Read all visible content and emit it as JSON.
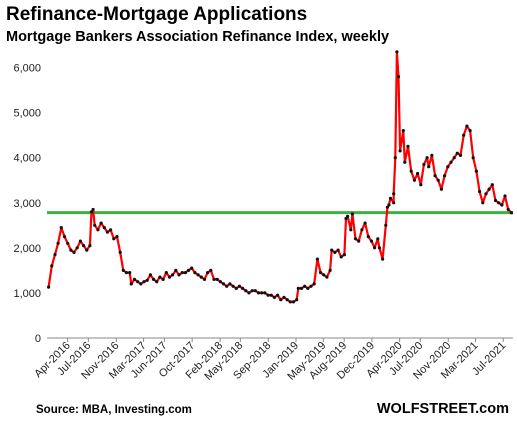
{
  "title": "Refinance-Mortgage  Applications",
  "subtitle": "Mortgage Bankers Association Refinance Index, weekly",
  "source": "Source: MBA,  Investing.com",
  "brand": "WOLFSTREET.com",
  "chart_data": {
    "type": "line",
    "title": "Refinance-Mortgage  Applications",
    "subtitle": "Mortgage Bankers Association Refinance Index, weekly",
    "xlabel": "",
    "ylabel": "",
    "ylim": [
      0,
      6500
    ],
    "y_ticks": [
      0,
      1000,
      2000,
      3000,
      4000,
      5000,
      6000
    ],
    "y_tick_labels": [
      "0",
      "1,000",
      "2,000",
      "3,000",
      "4,000",
      "5,000",
      "6,000"
    ],
    "x_range": [
      "2016-01-01",
      "2021-08-13"
    ],
    "x_ticks": [
      {
        "label": "Apr-2016",
        "date": "2016-04-01"
      },
      {
        "label": "Jul-2016",
        "date": "2016-07-01"
      },
      {
        "label": "Nov-2016",
        "date": "2016-11-01"
      },
      {
        "label": "Mar-2017",
        "date": "2017-03-01"
      },
      {
        "label": "Jun-2017",
        "date": "2017-06-01"
      },
      {
        "label": "Oct-2017",
        "date": "2017-10-01"
      },
      {
        "label": "Feb-2018",
        "date": "2018-02-01"
      },
      {
        "label": "May-2018",
        "date": "2018-05-01"
      },
      {
        "label": "Sep-2018",
        "date": "2018-09-01"
      },
      {
        "label": "Jan-2019",
        "date": "2019-01-01"
      },
      {
        "label": "May-2019",
        "date": "2019-05-01"
      },
      {
        "label": "Aug-2019",
        "date": "2019-08-01"
      },
      {
        "label": "Dec-2019",
        "date": "2019-12-01"
      },
      {
        "label": "Apr-2020",
        "date": "2020-04-01"
      },
      {
        "label": "Jul-2020",
        "date": "2020-07-01"
      },
      {
        "label": "Nov-2020",
        "date": "2020-11-01"
      },
      {
        "label": "Mar-2021",
        "date": "2021-03-01"
      },
      {
        "label": "Jul-2021",
        "date": "2021-07-01"
      }
    ],
    "reference_line": {
      "y": 2780,
      "color": "#3cb043"
    },
    "series": [
      {
        "color": "#ff0000",
        "marker_color": "#111111",
        "points": [
          [
            "2016-01-08",
            1130
          ],
          [
            "2016-01-22",
            1600
          ],
          [
            "2016-02-05",
            1850
          ],
          [
            "2016-02-19",
            2100
          ],
          [
            "2016-03-04",
            2450
          ],
          [
            "2016-03-18",
            2250
          ],
          [
            "2016-04-01",
            2100
          ],
          [
            "2016-04-15",
            1950
          ],
          [
            "2016-04-29",
            1900
          ],
          [
            "2016-05-13",
            2000
          ],
          [
            "2016-05-27",
            2150
          ],
          [
            "2016-06-10",
            2050
          ],
          [
            "2016-06-24",
            1950
          ],
          [
            "2016-07-08",
            2050
          ],
          [
            "2016-07-15",
            2800
          ],
          [
            "2016-07-22",
            2850
          ],
          [
            "2016-07-29",
            2500
          ],
          [
            "2016-08-12",
            2400
          ],
          [
            "2016-08-26",
            2550
          ],
          [
            "2016-09-09",
            2450
          ],
          [
            "2016-09-23",
            2350
          ],
          [
            "2016-10-07",
            2400
          ],
          [
            "2016-10-21",
            2200
          ],
          [
            "2016-11-04",
            2250
          ],
          [
            "2016-11-18",
            1900
          ],
          [
            "2016-12-02",
            1500
          ],
          [
            "2016-12-16",
            1450
          ],
          [
            "2016-12-30",
            1450
          ],
          [
            "2017-01-06",
            1200
          ],
          [
            "2017-01-20",
            1300
          ],
          [
            "2017-02-03",
            1250
          ],
          [
            "2017-02-17",
            1200
          ],
          [
            "2017-03-03",
            1250
          ],
          [
            "2017-03-17",
            1280
          ],
          [
            "2017-03-31",
            1400
          ],
          [
            "2017-04-14",
            1300
          ],
          [
            "2017-04-28",
            1250
          ],
          [
            "2017-05-12",
            1350
          ],
          [
            "2017-05-26",
            1300
          ],
          [
            "2017-06-09",
            1450
          ],
          [
            "2017-06-23",
            1350
          ],
          [
            "2017-07-07",
            1400
          ],
          [
            "2017-07-21",
            1500
          ],
          [
            "2017-08-04",
            1400
          ],
          [
            "2017-08-18",
            1450
          ],
          [
            "2017-09-01",
            1450
          ],
          [
            "2017-09-15",
            1500
          ],
          [
            "2017-09-29",
            1550
          ],
          [
            "2017-10-13",
            1450
          ],
          [
            "2017-10-27",
            1400
          ],
          [
            "2017-11-10",
            1350
          ],
          [
            "2017-11-24",
            1300
          ],
          [
            "2017-12-08",
            1450
          ],
          [
            "2017-12-22",
            1500
          ],
          [
            "2018-01-05",
            1300
          ],
          [
            "2018-01-19",
            1300
          ],
          [
            "2018-02-02",
            1250
          ],
          [
            "2018-02-16",
            1200
          ],
          [
            "2018-03-02",
            1150
          ],
          [
            "2018-03-16",
            1200
          ],
          [
            "2018-03-30",
            1150
          ],
          [
            "2018-04-13",
            1100
          ],
          [
            "2018-04-27",
            1150
          ],
          [
            "2018-05-11",
            1100
          ],
          [
            "2018-05-25",
            1050
          ],
          [
            "2018-06-08",
            1000
          ],
          [
            "2018-06-22",
            1050
          ],
          [
            "2018-07-06",
            1050
          ],
          [
            "2018-07-20",
            1000
          ],
          [
            "2018-08-03",
            1000
          ],
          [
            "2018-08-17",
            1000
          ],
          [
            "2018-08-31",
            950
          ],
          [
            "2018-09-14",
            950
          ],
          [
            "2018-09-28",
            900
          ],
          [
            "2018-10-12",
            950
          ],
          [
            "2018-10-26",
            850
          ],
          [
            "2018-11-09",
            900
          ],
          [
            "2018-11-23",
            850
          ],
          [
            "2018-12-07",
            800
          ],
          [
            "2018-12-21",
            800
          ],
          [
            "2019-01-04",
            850
          ],
          [
            "2019-01-11",
            1100
          ],
          [
            "2019-01-25",
            1100
          ],
          [
            "2019-02-08",
            1150
          ],
          [
            "2019-02-22",
            1100
          ],
          [
            "2019-03-08",
            1150
          ],
          [
            "2019-03-22",
            1200
          ],
          [
            "2019-04-05",
            1750
          ],
          [
            "2019-04-19",
            1450
          ],
          [
            "2019-05-03",
            1400
          ],
          [
            "2019-05-17",
            1350
          ],
          [
            "2019-05-31",
            1500
          ],
          [
            "2019-06-07",
            1950
          ],
          [
            "2019-06-21",
            1900
          ],
          [
            "2019-07-05",
            1950
          ],
          [
            "2019-07-19",
            1800
          ],
          [
            "2019-08-02",
            1850
          ],
          [
            "2019-08-09",
            2650
          ],
          [
            "2019-08-16",
            2700
          ],
          [
            "2019-08-30",
            2400
          ],
          [
            "2019-09-06",
            2750
          ],
          [
            "2019-09-20",
            2200
          ],
          [
            "2019-10-04",
            2150
          ],
          [
            "2019-10-18",
            2400
          ],
          [
            "2019-11-01",
            2550
          ],
          [
            "2019-11-15",
            2250
          ],
          [
            "2019-11-29",
            2150
          ],
          [
            "2019-12-13",
            2000
          ],
          [
            "2019-12-27",
            2200
          ],
          [
            "2020-01-03",
            2000
          ],
          [
            "2020-01-17",
            1750
          ],
          [
            "2020-01-31",
            2500
          ],
          [
            "2020-02-07",
            2900
          ],
          [
            "2020-02-14",
            2950
          ],
          [
            "2020-02-21",
            3100
          ],
          [
            "2020-03-06",
            3000
          ],
          [
            "2020-03-06",
            3200
          ],
          [
            "2020-03-13",
            4000
          ],
          [
            "2020-03-20",
            6350
          ],
          [
            "2020-03-27",
            5800
          ],
          [
            "2020-04-03",
            4150
          ],
          [
            "2020-04-17",
            4600
          ],
          [
            "2020-04-24",
            3900
          ],
          [
            "2020-05-08",
            4250
          ],
          [
            "2020-05-22",
            3700
          ],
          [
            "2020-06-05",
            3500
          ],
          [
            "2020-06-19",
            3650
          ],
          [
            "2020-07-03",
            3400
          ],
          [
            "2020-07-17",
            3850
          ],
          [
            "2020-07-31",
            4000
          ],
          [
            "2020-08-07",
            3800
          ],
          [
            "2020-08-21",
            4050
          ],
          [
            "2020-09-04",
            3600
          ],
          [
            "2020-09-18",
            3500
          ],
          [
            "2020-10-02",
            3300
          ],
          [
            "2020-10-16",
            3600
          ],
          [
            "2020-10-30",
            3800
          ],
          [
            "2020-11-13",
            3900
          ],
          [
            "2020-11-27",
            4000
          ],
          [
            "2020-12-11",
            4100
          ],
          [
            "2020-12-25",
            4050
          ],
          [
            "2021-01-08",
            4500
          ],
          [
            "2021-01-22",
            4700
          ],
          [
            "2021-02-05",
            4600
          ],
          [
            "2021-02-19",
            4000
          ],
          [
            "2021-03-05",
            3700
          ],
          [
            "2021-03-19",
            3250
          ],
          [
            "2021-04-02",
            3000
          ],
          [
            "2021-04-16",
            3200
          ],
          [
            "2021-04-30",
            3300
          ],
          [
            "2021-05-14",
            3400
          ],
          [
            "2021-05-28",
            3050
          ],
          [
            "2021-06-11",
            3000
          ],
          [
            "2021-06-25",
            2950
          ],
          [
            "2021-07-09",
            3150
          ],
          [
            "2021-07-23",
            2850
          ],
          [
            "2021-08-06",
            2780
          ]
        ]
      }
    ]
  }
}
